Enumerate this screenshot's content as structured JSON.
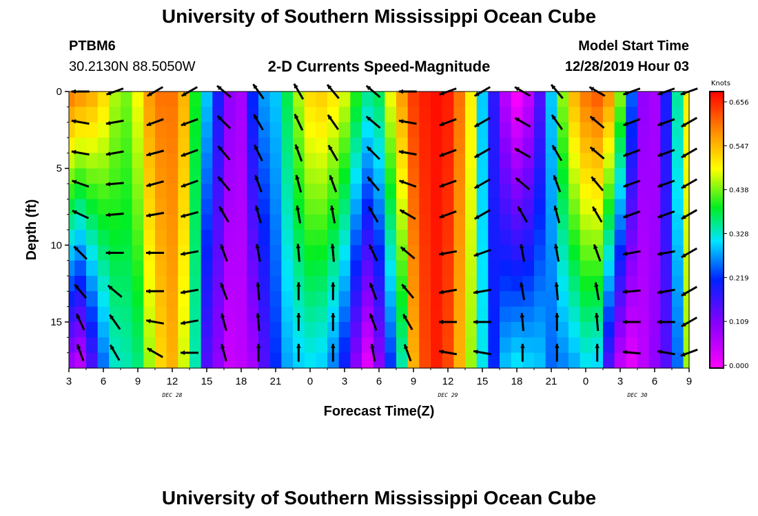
{
  "header": {
    "title": "University of Southern Mississippi Ocean Cube",
    "station": "PTBM6",
    "location": "30.2130N 88.5050W",
    "subtitle": "2-D Currents Speed-Magnitude",
    "model_label": "Model Start Time",
    "model_time": "12/28/2019 Hour 03"
  },
  "footer": {
    "title": "University of Southern Mississippi Ocean Cube"
  },
  "chart_data": {
    "type": "heatmap",
    "title": "2-D Currents Speed-Magnitude",
    "xlabel": "Forecast Time(Z)",
    "ylabel": "Depth (ft)",
    "x_tick_labels": [
      "3",
      "6",
      "9",
      "12",
      "15",
      "18",
      "21",
      "0",
      "3",
      "6",
      "9",
      "12",
      "15",
      "18",
      "21",
      "0",
      "3",
      "6",
      "9"
    ],
    "x_hours": [
      3,
      6,
      9,
      12,
      15,
      18,
      21,
      24,
      27,
      30,
      33,
      36,
      39,
      42,
      45,
      48,
      51,
      54,
      57
    ],
    "date_labels": [
      {
        "text": "DEC  28",
        "hour": 12
      },
      {
        "text": "DEC  29",
        "hour": 36
      },
      {
        "text": "DEC  30",
        "hour": 52.5
      }
    ],
    "xlim": [
      3,
      57
    ],
    "y_ticks": [
      0,
      5,
      10,
      15
    ],
    "ylim": [
      0,
      18
    ],
    "colorbar": {
      "unit": "Knots",
      "ticks": [
        "0.656",
        "0.547",
        "0.438",
        "0.328",
        "0.219",
        "0.109",
        "0.000"
      ],
      "range": [
        0,
        0.68
      ]
    },
    "speed_profile": {
      "hours": [
        3,
        4,
        5,
        6,
        7,
        8,
        9,
        10,
        11,
        12,
        13,
        14,
        15,
        16,
        17,
        18,
        19,
        20,
        21,
        22,
        23,
        24,
        25,
        26,
        27,
        28,
        29,
        30,
        31,
        32,
        33,
        34,
        35,
        36,
        37,
        38,
        39,
        40,
        41,
        42,
        43,
        44,
        45,
        46,
        47,
        48,
        49,
        50,
        51,
        52,
        53,
        54,
        55,
        56,
        57
      ],
      "surface_knots": [
        0.6,
        0.58,
        0.56,
        0.52,
        0.46,
        0.44,
        0.49,
        0.57,
        0.6,
        0.6,
        0.55,
        0.4,
        0.3,
        0.2,
        0.1,
        0.08,
        0.22,
        0.28,
        0.3,
        0.38,
        0.46,
        0.52,
        0.53,
        0.51,
        0.48,
        0.41,
        0.36,
        0.38,
        0.49,
        0.57,
        0.64,
        0.66,
        0.67,
        0.66,
        0.6,
        0.5,
        0.3,
        0.18,
        0.06,
        0.0,
        0.05,
        0.15,
        0.3,
        0.45,
        0.55,
        0.6,
        0.62,
        0.58,
        0.45,
        0.25,
        0.1,
        0.08,
        0.2,
        0.35,
        0.5
      ],
      "bottom_knots": [
        0.08,
        0.05,
        0.15,
        0.25,
        0.33,
        0.34,
        0.36,
        0.45,
        0.52,
        0.55,
        0.47,
        0.34,
        0.15,
        0.1,
        0.05,
        0.06,
        0.08,
        0.15,
        0.22,
        0.28,
        0.3,
        0.31,
        0.3,
        0.26,
        0.2,
        0.1,
        0.02,
        0.1,
        0.22,
        0.34,
        0.55,
        0.63,
        0.66,
        0.63,
        0.55,
        0.45,
        0.32,
        0.22,
        0.3,
        0.32,
        0.31,
        0.3,
        0.25,
        0.26,
        0.28,
        0.31,
        0.3,
        0.15,
        0.05,
        0.02,
        0.06,
        0.1,
        0.15,
        0.25,
        0.45
      ]
    },
    "vector_grid": {
      "hours": [
        4,
        7,
        10.5,
        13.5,
        16.5,
        19.5,
        23,
        26,
        29.5,
        32.5,
        36,
        39,
        42.5,
        45.5,
        49,
        52,
        55,
        57
      ],
      "depths": [
        0,
        2,
        4,
        6,
        8,
        10.5,
        13,
        15,
        17
      ],
      "angle_deg": [
        [
          180,
          200,
          210,
          210,
          140,
          125,
          120,
          130,
          140,
          180,
          200,
          210,
          150,
          130,
          150,
          200,
          200,
          200
        ],
        [
          170,
          190,
          200,
          200,
          135,
          120,
          115,
          125,
          140,
          170,
          200,
          210,
          150,
          125,
          140,
          200,
          200,
          210
        ],
        [
          170,
          190,
          195,
          200,
          130,
          115,
          110,
          120,
          135,
          170,
          200,
          210,
          150,
          120,
          140,
          200,
          200,
          210
        ],
        [
          160,
          185,
          195,
          200,
          130,
          110,
          105,
          110,
          130,
          160,
          200,
          210,
          140,
          110,
          130,
          200,
          200,
          210
        ],
        [
          155,
          185,
          190,
          195,
          120,
          105,
          100,
          100,
          120,
          150,
          200,
          210,
          120,
          105,
          120,
          200,
          200,
          210
        ],
        [
          135,
          180,
          180,
          190,
          110,
          100,
          95,
          95,
          115,
          140,
          190,
          200,
          100,
          100,
          110,
          190,
          190,
          210
        ],
        [
          130,
          140,
          180,
          190,
          110,
          95,
          90,
          90,
          110,
          130,
          190,
          190,
          100,
          95,
          100,
          185,
          190,
          210
        ],
        [
          115,
          125,
          170,
          190,
          105,
          95,
          90,
          90,
          110,
          120,
          180,
          180,
          95,
          90,
          95,
          180,
          180,
          210
        ],
        [
          110,
          120,
          150,
          180,
          105,
          90,
          90,
          90,
          100,
          110,
          170,
          170,
          90,
          90,
          90,
          175,
          170,
          200
        ]
      ]
    }
  }
}
